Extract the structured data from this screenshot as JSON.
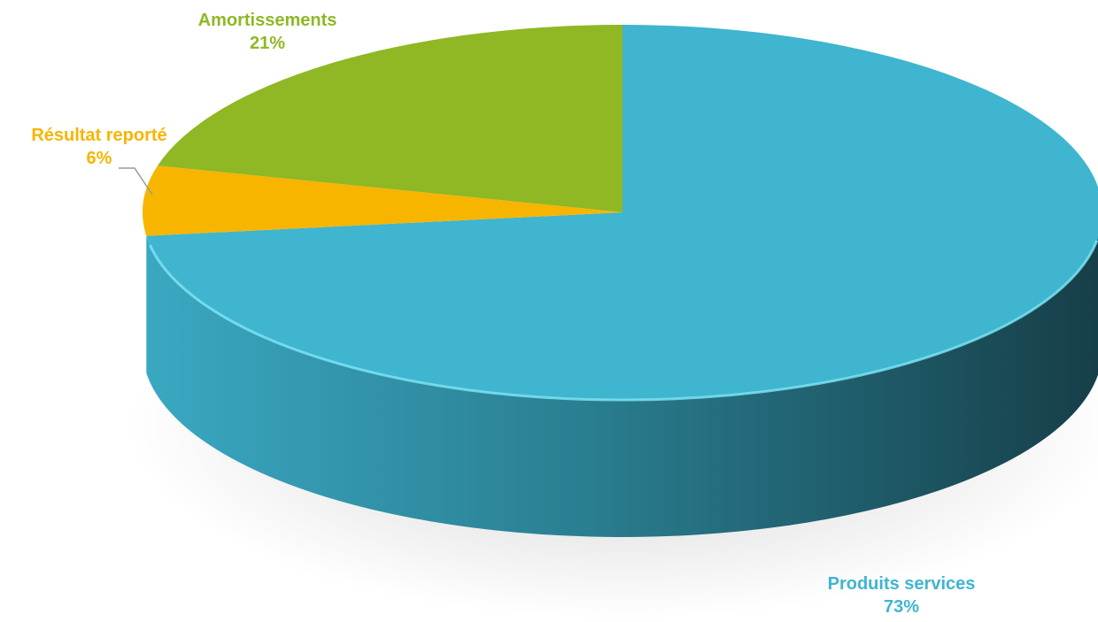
{
  "chart_data": {
    "type": "pie",
    "title": "",
    "legend": "none",
    "slices": [
      {
        "label": "Produits services",
        "value": 73,
        "value_label": "73%",
        "color": "#3fb5cf"
      },
      {
        "label": "Résultat reporté",
        "value": 6,
        "value_label": "6%",
        "color": "#f7b500"
      },
      {
        "label": "Amortissements",
        "value": 21,
        "value_label": "21%",
        "color": "#8fb824"
      }
    ]
  }
}
